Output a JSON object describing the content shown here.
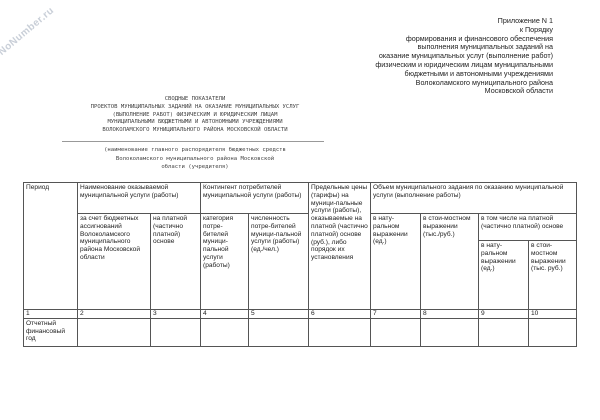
{
  "watermark": "NoNumber.ru",
  "appendix": [
    "Приложение N 1",
    "к Порядку",
    "формирования и финансового обеспечения",
    "выполнения муниципальных заданий на",
    "оказание муниципальных услуг (выполнение работ)",
    "физическим и юридическим лицам муниципальными",
    "бюджетными и автономными учреждениями",
    "Волоколамского муниципального района",
    "Московской области"
  ],
  "title": [
    "СВОДНЫЕ ПОКАЗАТЕЛИ",
    "ПРОЕКТОВ МУНИЦИПАЛЬНЫХ ЗАДАНИЙ НА ОКАЗАНИЕ МУНИЦИПАЛЬНЫХ УСЛУГ",
    "(ВЫПОЛНЕНИЕ РАБОТ) ФИЗИЧЕСКИМ И ЮРИДИЧЕСКИМ ЛИЦАМ",
    "МУНИЦИПАЛЬНЫМИ БЮДЖЕТНЫМИ И АВТОНОМНЫМИ УЧРЕЖДЕНИЯМИ",
    "ВОЛОКОЛАМСКОГО МУНИЦИПАЛЬНОГО РАЙОНА МОСКОВСКОЙ ОБЛАСТИ"
  ],
  "subtitle": [
    "(наименование главного распорядителя бюджетных средств",
    "Волоколамского муниципального района Московской",
    "области (учредителя)"
  ],
  "table": {
    "period": "Период",
    "service_name": "Наименование оказываемой муниципальной услуги (работы)",
    "budget": "за счет бюджетных ассигнований Волоколамского муниципального района Московской области",
    "paid": "на платной (частично платной) основе",
    "contingent": "Контингент потребителей муниципальной услуги (работы)",
    "category": "категория потре-бителей муници-пальной услуги (работы)",
    "count": "численность потре-бителей муници-пальной услуги (работы) (ед./чел.)",
    "prices": "Предельные цены (тарифы) на муници-пальные услуги (работы), оказываемые на платной (частично платной) основе (руб.), либо порядок их установления",
    "volume": "Объем муниципального задания по оказанию муниципальной услуги (выполнение работы)",
    "natural": "в нату-ральном выражении (ед.)",
    "cost": "в стои-мостном выражении (тыс./руб.)",
    "incl_paid": "в том числе на платной (частично платной) основе",
    "paid_natural": "в нату-ральном выражении (ед.)",
    "paid_cost": "в стои-мостном выражении (тыс. руб.)",
    "numbers": [
      "1",
      "2",
      "3",
      "4",
      "5",
      "6",
      "7",
      "8",
      "9",
      "10"
    ],
    "row_label": "Отчетный финансовый год"
  }
}
